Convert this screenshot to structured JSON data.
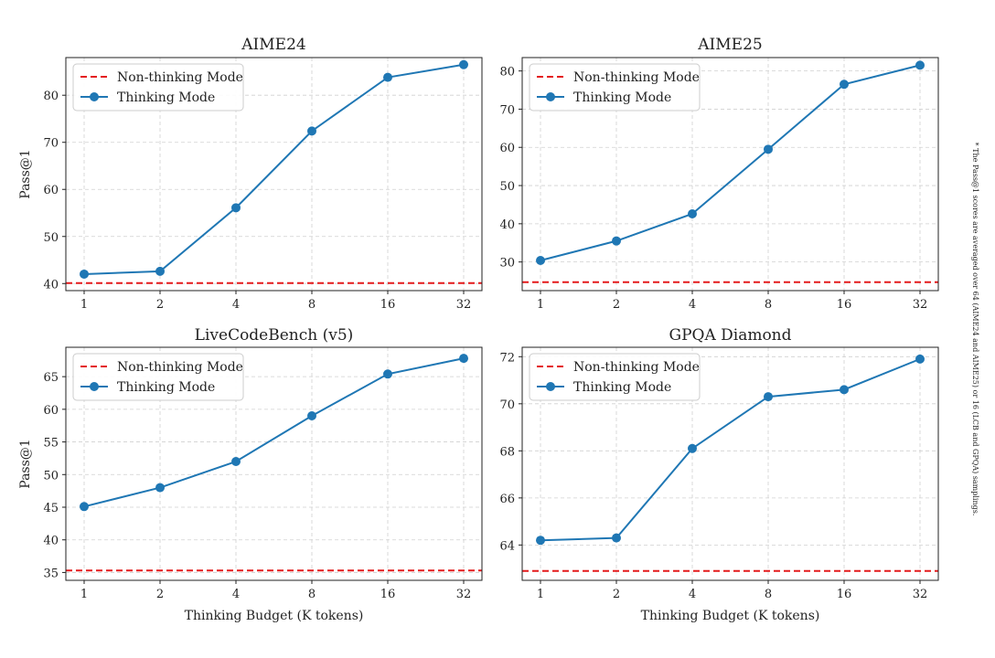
{
  "footnote": "* The Pass@1 scores are averaged over 64 (AIME24 and AIME25) or 16 (LCB and GPQA) samplings.",
  "colors": {
    "thinking": "#1f77b4",
    "non_thinking": "#e41a1c",
    "grid": "#d0d0d0"
  },
  "chart_data": [
    {
      "type": "line",
      "title": "AIME24",
      "xlabel": "",
      "ylabel": "Pass@1",
      "x": [
        "1",
        "2",
        "4",
        "8",
        "16",
        "32"
      ],
      "ylim": [
        38.5,
        88
      ],
      "yticks": [
        40,
        50,
        60,
        70,
        80
      ],
      "grid": true,
      "legend_position": "top-left",
      "series": [
        {
          "name": "Non-thinking Mode",
          "style": "dashed",
          "value": 40.1
        },
        {
          "name": "Thinking Mode",
          "style": "line-marker",
          "values": [
            42.0,
            42.6,
            56.1,
            72.4,
            83.8,
            86.5
          ]
        }
      ]
    },
    {
      "type": "line",
      "title": "AIME25",
      "xlabel": "",
      "ylabel": "",
      "x": [
        "1",
        "2",
        "4",
        "8",
        "16",
        "32"
      ],
      "ylim": [
        22.5,
        83.5
      ],
      "yticks": [
        30,
        40,
        50,
        60,
        70,
        80
      ],
      "grid": true,
      "legend_position": "top-left",
      "series": [
        {
          "name": "Non-thinking Mode",
          "style": "dashed",
          "value": 24.7
        },
        {
          "name": "Thinking Mode",
          "style": "line-marker",
          "values": [
            30.4,
            35.5,
            42.6,
            59.5,
            76.5,
            81.5
          ]
        }
      ]
    },
    {
      "type": "line",
      "title": "LiveCodeBench (v5)",
      "xlabel": "Thinking Budget (K tokens)",
      "ylabel": "Pass@1",
      "x": [
        "1",
        "2",
        "4",
        "8",
        "16",
        "32"
      ],
      "ylim": [
        33.8,
        69.5
      ],
      "yticks": [
        35,
        40,
        45,
        50,
        55,
        60,
        65
      ],
      "grid": true,
      "legend_position": "top-left",
      "series": [
        {
          "name": "Non-thinking Mode",
          "style": "dashed",
          "value": 35.3
        },
        {
          "name": "Thinking Mode",
          "style": "line-marker",
          "values": [
            45.1,
            48.0,
            52.0,
            59.0,
            65.4,
            67.8
          ]
        }
      ]
    },
    {
      "type": "line",
      "title": "GPQA Diamond",
      "xlabel": "Thinking Budget (K tokens)",
      "ylabel": "",
      "x": [
        "1",
        "2",
        "4",
        "8",
        "16",
        "32"
      ],
      "ylim": [
        62.5,
        72.4
      ],
      "yticks": [
        64,
        66,
        68,
        70,
        72
      ],
      "grid": true,
      "legend_position": "top-left",
      "series": [
        {
          "name": "Non-thinking Mode",
          "style": "dashed",
          "value": 62.9
        },
        {
          "name": "Thinking Mode",
          "style": "line-marker",
          "values": [
            64.2,
            64.3,
            68.1,
            70.3,
            70.6,
            71.9
          ]
        }
      ]
    }
  ]
}
